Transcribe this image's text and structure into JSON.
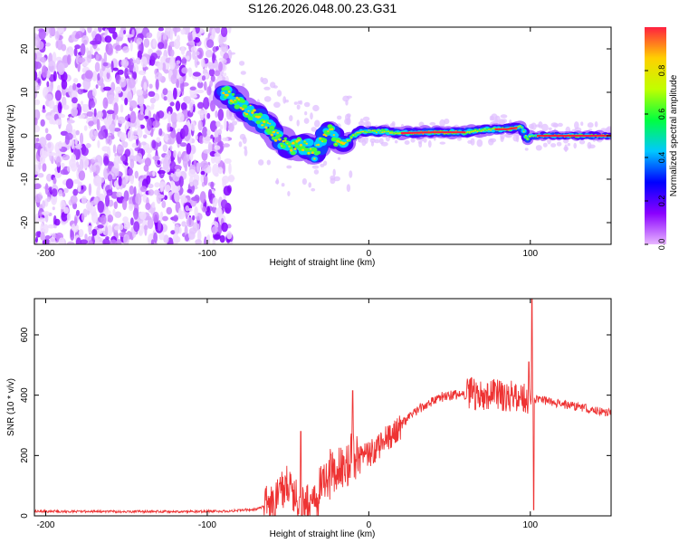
{
  "title": "S126.2026.048.00.23.G31",
  "chart_data": [
    {
      "type": "heatmap",
      "xlabel": "Height of straight line (km)",
      "ylabel": "Frequency (Hz)",
      "xlim": [
        -207,
        150
      ],
      "ylim": [
        -25,
        25
      ],
      "x_ticks": [
        -200,
        -100,
        0,
        100
      ],
      "y_ticks": [
        -20,
        -10,
        0,
        10,
        20
      ],
      "colorbar": {
        "label": "Normalized spectral amplitude",
        "range": [
          0,
          1
        ],
        "ticks": [
          0.0,
          0.2,
          0.4,
          0.6,
          0.8
        ],
        "colors": [
          "#e8b6ff",
          "#8a00ff",
          "#0000ff",
          "#00c8ff",
          "#00ff40",
          "#c0ff00",
          "#ffd000",
          "#ff2040"
        ]
      },
      "ridge": {
        "x": [
          -90,
          -82,
          -75,
          -68,
          -62,
          -57,
          -52,
          -47,
          -42,
          -37,
          -33,
          -28,
          -24,
          -20,
          -15,
          -10,
          -5,
          0,
          10,
          20,
          40,
          60,
          75,
          85,
          95,
          98,
          100,
          150
        ],
        "y": [
          10,
          8,
          6,
          4,
          2,
          0,
          -2,
          -3,
          -2,
          -3,
          -4,
          0,
          1,
          -1,
          -2,
          0,
          1,
          1,
          1,
          0.6,
          0.8,
          0.8,
          1.5,
          1.5,
          2,
          -1,
          0,
          0
        ]
      }
    },
    {
      "type": "line",
      "xlabel": "Height of straight line (km)",
      "ylabel": "SNR (10 * v/v)",
      "xlim": [
        -207,
        150
      ],
      "ylim": [
        0,
        720
      ],
      "x_ticks": [
        -200,
        -100,
        0,
        100
      ],
      "y_ticks": [
        0,
        200,
        400,
        600
      ],
      "color": "#ee3333",
      "envelope": {
        "x": [
          -207,
          -150,
          -90,
          -70,
          -60,
          -55,
          -50,
          -45,
          -40,
          -35,
          -30,
          -25,
          -20,
          -10,
          0,
          10,
          20,
          30,
          40,
          50,
          60,
          70,
          80,
          90,
          95,
          100,
          105,
          110,
          130,
          150
        ],
        "y": [
          15,
          14,
          15,
          22,
          40,
          70,
          110,
          60,
          30,
          40,
          90,
          120,
          170,
          190,
          200,
          250,
          300,
          350,
          385,
          400,
          405,
          405,
          400,
          395,
          390,
          380,
          390,
          380,
          360,
          340
        ]
      },
      "spikes": [
        {
          "x": -42,
          "y": 280
        },
        {
          "x": -10,
          "y": 415
        },
        {
          "x": 99,
          "y": 510
        },
        {
          "x": 101,
          "y": 720
        },
        {
          "x": 102,
          "y": 20
        }
      ]
    }
  ]
}
